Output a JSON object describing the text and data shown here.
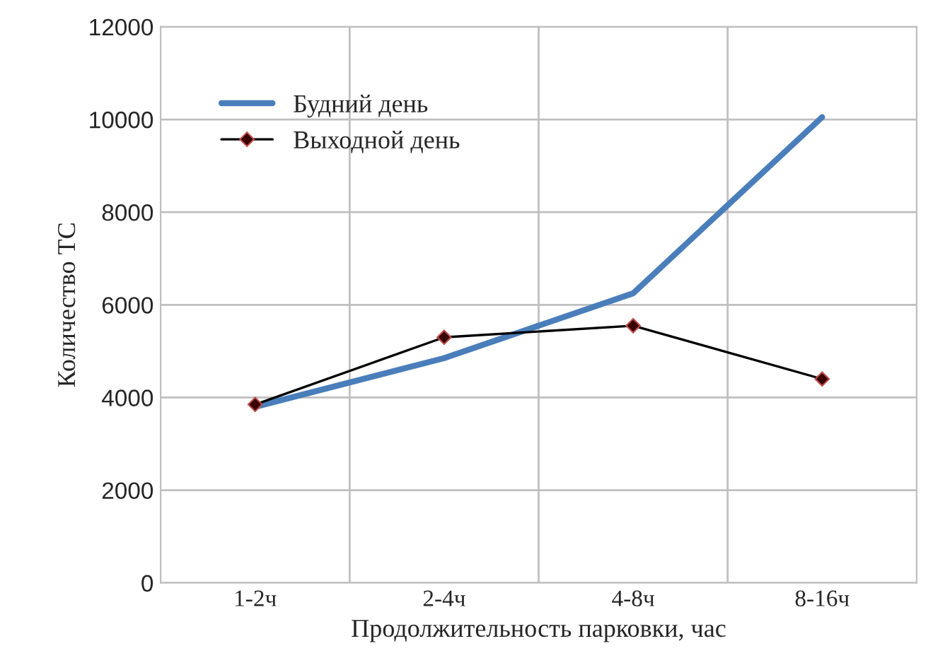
{
  "chart_data": {
    "type": "line",
    "xlabel": "Продолжительность парковки, час",
    "ylabel": "Количество ТС",
    "categories": [
      "1-2ч",
      "2-4ч",
      "4-8ч",
      "8-16ч"
    ],
    "series": [
      {
        "name": "Будний день",
        "color": "#4a7ebb",
        "values": [
          3800,
          4850,
          6250,
          10050
        ],
        "marker": "none"
      },
      {
        "name": "Выходной день",
        "color": "#000000",
        "values": [
          3850,
          5300,
          5550,
          4400
        ],
        "marker": "diamond"
      }
    ],
    "ylim": [
      0,
      12000
    ],
    "yticks": [
      0,
      2000,
      4000,
      6000,
      8000,
      10000,
      12000
    ],
    "grid": true,
    "legend": "top left"
  }
}
